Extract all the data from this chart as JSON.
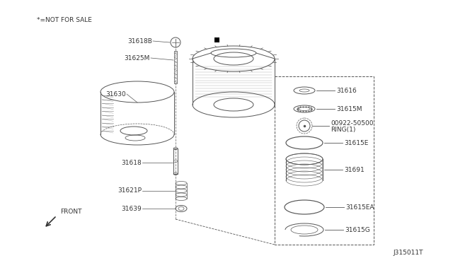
{
  "bg_color": "#ffffff",
  "footer": "J315011T",
  "not_for_sale_text": "*=NOT FOR SALE",
  "front_label": "FRONT",
  "line_color": "#555555",
  "text_color": "#333333"
}
